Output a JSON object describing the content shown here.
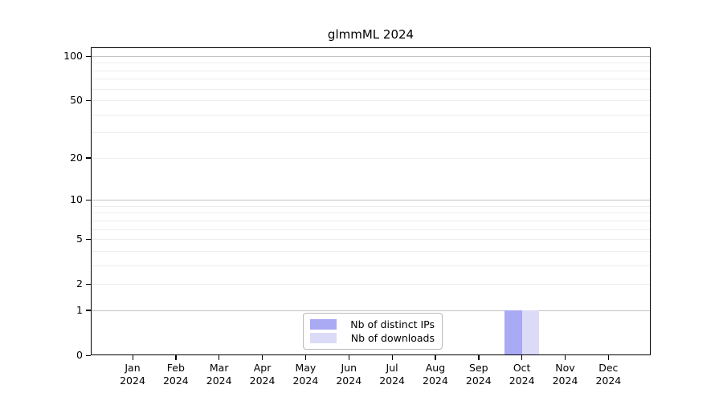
{
  "chart_data": {
    "type": "bar",
    "title": "glmmML 2024",
    "categories": [
      "Jan",
      "Feb",
      "Mar",
      "Apr",
      "May",
      "Jun",
      "Jul",
      "Aug",
      "Sep",
      "Oct",
      "Nov",
      "Dec"
    ],
    "x_year_label": "2024",
    "series": [
      {
        "name": "Nb of distinct IPs",
        "color": "#a9a9f4",
        "values": [
          0,
          0,
          0,
          0,
          0,
          0,
          0,
          0,
          0,
          1,
          0,
          0
        ]
      },
      {
        "name": "Nb of downloads",
        "color": "#dbdbf8",
        "values": [
          0,
          0,
          0,
          0,
          0,
          0,
          0,
          0,
          0,
          1,
          0,
          0
        ]
      }
    ],
    "yscale": "log1p",
    "ylim": [
      0,
      115
    ],
    "y_ticks": [
      0,
      1,
      2,
      5,
      10,
      20,
      50,
      100
    ],
    "y_major_gridlines": [
      1,
      10,
      100
    ],
    "y_minor_gridlines": [
      2,
      3,
      4,
      5,
      6,
      7,
      8,
      9,
      20,
      30,
      40,
      50,
      60,
      70,
      80,
      90
    ],
    "grid": true,
    "legend_position": "lower center"
  },
  "colors": {
    "background": "#ffffff",
    "axis": "#000000",
    "grid_major": "#c4c4c4",
    "grid_minor": "#ededed",
    "legend_border": "#b9b9b9"
  }
}
